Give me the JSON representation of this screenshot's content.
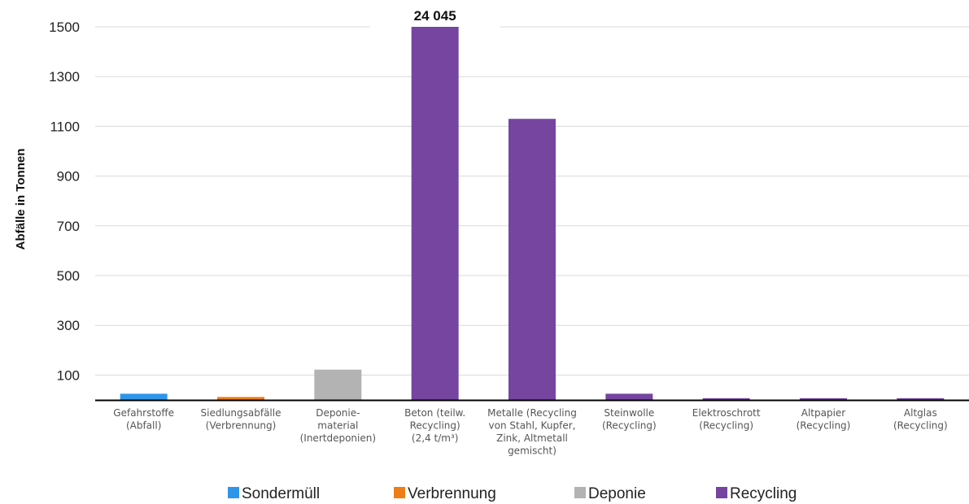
{
  "chart_data": {
    "type": "bar",
    "ylabel": "Abfälle in Tonnen",
    "xlabel": "",
    "ylim": [
      0,
      1500
    ],
    "yticks": [
      100,
      300,
      500,
      700,
      900,
      1100,
      1300,
      1500
    ],
    "grid": true,
    "legend_position": "bottom",
    "categories": [
      {
        "label": [
          "Gefahrstoffe",
          "(Abfall)"
        ],
        "value": 25,
        "group": "Sondermüll"
      },
      {
        "label": [
          "Siedlungsabfälle",
          "(Verbrennung)"
        ],
        "value": 12,
        "group": "Verbrennung"
      },
      {
        "label": [
          "Deponie-",
          "material",
          "(Inertdeponien)"
        ],
        "value": 122,
        "group": "Deponie"
      },
      {
        "label": [
          "Beton (teilw.",
          "Recycling)",
          "(2,4 t/m³)"
        ],
        "value": 24045,
        "group": "Recycling",
        "data_label": "24 045",
        "truncated": true
      },
      {
        "label": [
          "Metalle (Recycling",
          "von Stahl, Kupfer,",
          "Zink, Altmetall",
          "gemischt)"
        ],
        "value": 1130,
        "group": "Recycling"
      },
      {
        "label": [
          "Steinwolle",
          "(Recycling)"
        ],
        "value": 25,
        "group": "Recycling"
      },
      {
        "label": [
          "Elektroschrott",
          "(Recycling)"
        ],
        "value": 7,
        "group": "Recycling"
      },
      {
        "label": [
          "Altpapier",
          "(Recycling)"
        ],
        "value": 7,
        "group": "Recycling"
      },
      {
        "label": [
          "Altglas",
          "(Recycling)"
        ],
        "value": 7,
        "group": "Recycling"
      }
    ],
    "legend": [
      {
        "name": "Sondermüll",
        "color": "#2f95e8"
      },
      {
        "name": "Verbrennung",
        "color": "#ef7d16"
      },
      {
        "name": "Deponie",
        "color": "#b3b3b3"
      },
      {
        "name": "Recycling",
        "color": "#7545a0"
      }
    ]
  }
}
